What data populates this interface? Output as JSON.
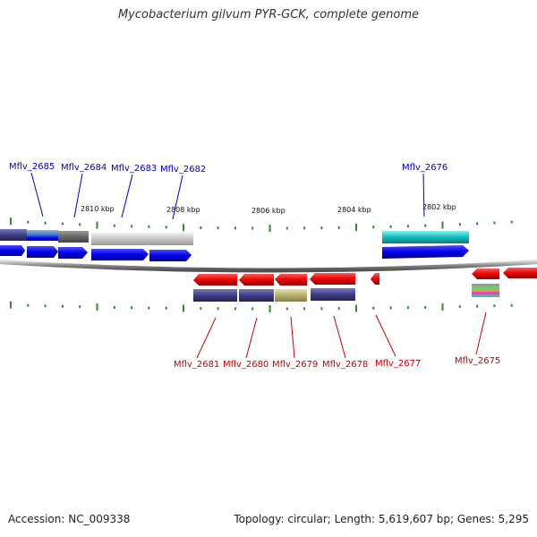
{
  "title": "Mycobacterium gilvum PYR-GCK, complete genome",
  "accession": "Accession: NC_009338",
  "summary": "Topology: circular; Length: 5,619,607 bp; Genes: 5,295",
  "colors": {
    "forward": "#0000ee",
    "reverse": "#ee0000",
    "backbone": "#808080",
    "tick": "#2e8b2e"
  },
  "scale_labels": [
    "2810 kbp",
    "2808 kbp",
    "2806 kbp",
    "2804 kbp",
    "2802 kbp"
  ],
  "genes_top": [
    "Mflv_2685",
    "Mflv_2684",
    "Mflv_2683",
    "Mflv_2682",
    "Mflv_2676"
  ],
  "genes_bottom": [
    "Mflv_2681",
    "Mflv_2680",
    "Mflv_2679",
    "Mflv_2678",
    "Mflv_2677",
    "Mflv_2675"
  ]
}
